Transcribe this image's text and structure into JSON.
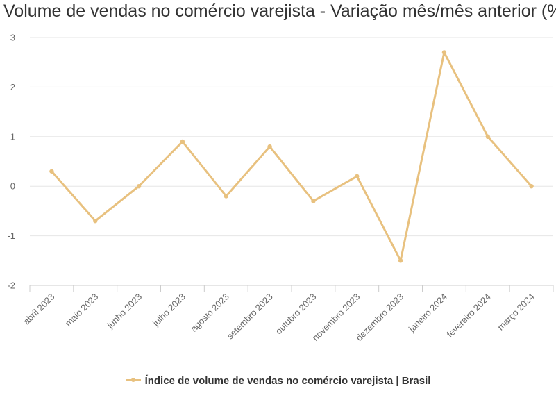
{
  "chart_data": {
    "type": "line",
    "title": "Volume de vendas no comércio varejista - Variação mês/mês anterior (%)",
    "categories": [
      "abril 2023",
      "maio 2023",
      "junho 2023",
      "julho 2023",
      "agosto 2023",
      "setembro 2023",
      "outubro 2023",
      "novembro 2023",
      "dezembro 2023",
      "janeiro 2024",
      "fevereiro 2024",
      "março 2024"
    ],
    "series": [
      {
        "name": "Índice de volume de vendas no comércio varejista | Brasil",
        "values": [
          0.3,
          -0.7,
          0.0,
          0.9,
          -0.2,
          0.8,
          -0.3,
          0.2,
          -1.5,
          2.7,
          1.0,
          0.0
        ],
        "color": "#e8c17f"
      }
    ],
    "ylim": [
      -2,
      3
    ],
    "yticks": [
      "3",
      "2",
      "1",
      "0",
      "-1",
      "-2"
    ],
    "ytick_values": [
      3,
      2,
      1,
      0,
      -1,
      -2
    ],
    "grid": true,
    "legend_position": "bottom-center",
    "grid_color": "#e6e6e6",
    "axis_color": "#cccccc"
  }
}
